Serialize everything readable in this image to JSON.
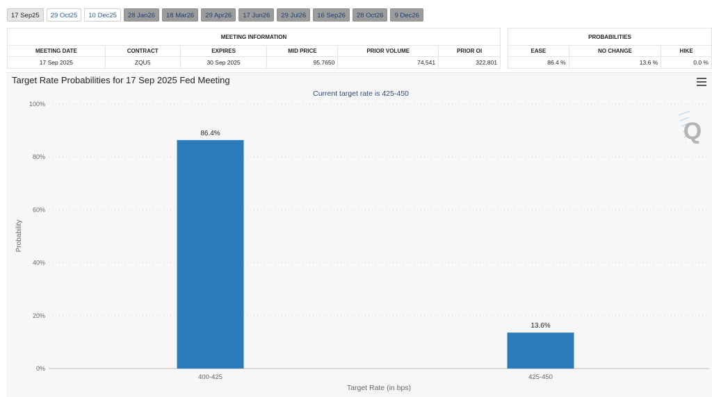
{
  "tabs": [
    {
      "label": "17 Sep25",
      "state": "active"
    },
    {
      "label": "29 Oct25",
      "state": "light"
    },
    {
      "label": "10 Dec25",
      "state": "light"
    },
    {
      "label": "28 Jan26",
      "state": "dark"
    },
    {
      "label": "18 Mar26",
      "state": "dark"
    },
    {
      "label": "29 Apr26",
      "state": "dark"
    },
    {
      "label": "17 Jun26",
      "state": "dark"
    },
    {
      "label": "29 Jul26",
      "state": "dark"
    },
    {
      "label": "16 Sep26",
      "state": "dark"
    },
    {
      "label": "28 Oct26",
      "state": "dark"
    },
    {
      "label": "9 Dec26",
      "state": "dark"
    }
  ],
  "meeting_info": {
    "section_title": "MEETING INFORMATION",
    "headers": [
      "MEETING DATE",
      "CONTRACT",
      "EXPIRES",
      "MID PRICE",
      "PRIOR VOLUME",
      "PRIOR OI"
    ],
    "row": [
      "17 Sep 2025",
      "ZQU5",
      "30 Sep 2025",
      "95.7650",
      "74,541",
      "322,801"
    ]
  },
  "probabilities": {
    "section_title": "PROBABILITIES",
    "headers": [
      "EASE",
      "NO CHANGE",
      "HIKE"
    ],
    "row": [
      "86.4 %",
      "13.6 %",
      "0.0 %"
    ]
  },
  "colors": {
    "bar": "#2b7bb9",
    "subtitle": "#2c4a7a",
    "axis_text": "#666666"
  },
  "chart_data": {
    "type": "bar",
    "title": "Target Rate Probabilities for 17 Sep 2025 Fed Meeting",
    "subtitle": "Current target rate is 425-450",
    "xlabel": "Target Rate (in bps)",
    "ylabel": "Probability",
    "categories": [
      "400-425",
      "425-450"
    ],
    "values": [
      86.4,
      13.6
    ],
    "data_labels": [
      "86.4%",
      "13.6%"
    ],
    "ylim": [
      0,
      100
    ],
    "yticks": [
      "0%",
      "20%",
      "40%",
      "60%",
      "80%",
      "100%"
    ],
    "grid": true,
    "legend": "none",
    "watermark": "Q"
  }
}
